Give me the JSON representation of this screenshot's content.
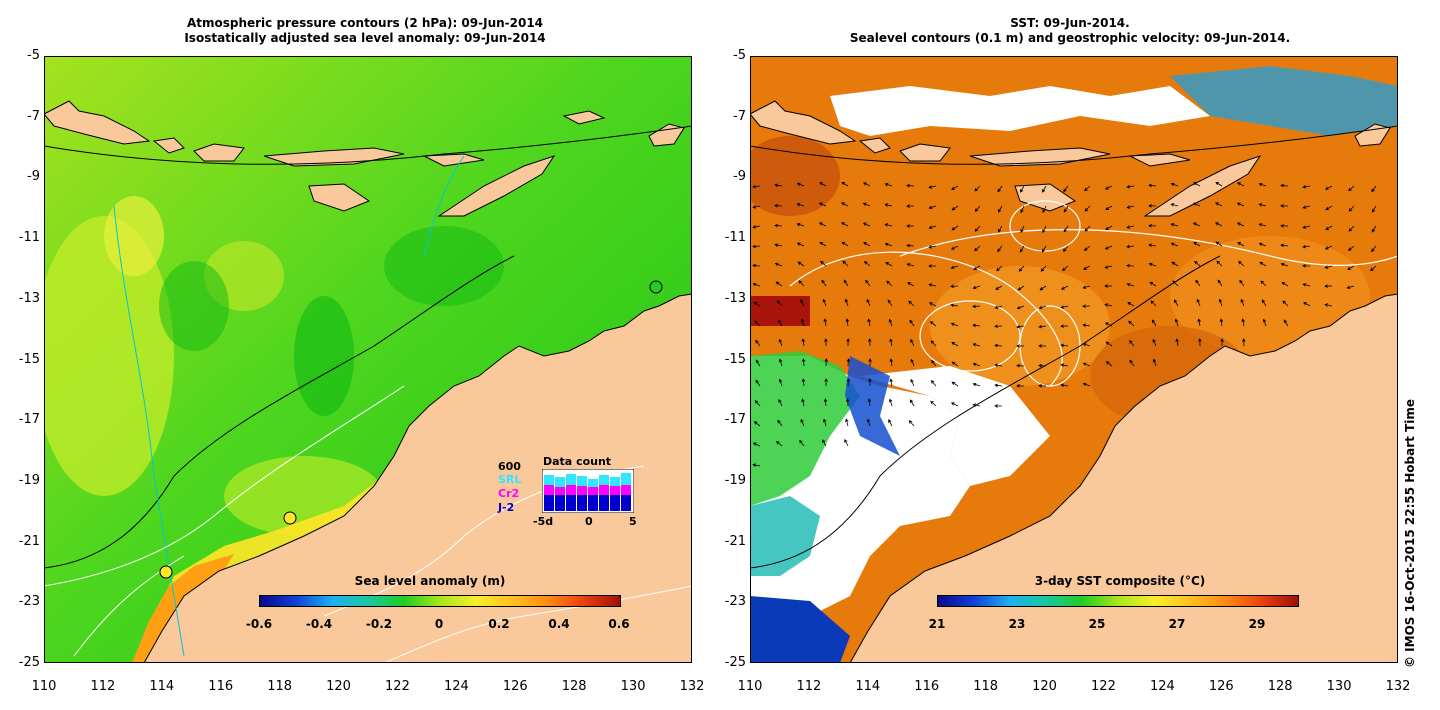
{
  "left_panel": {
    "title_line1": "Atmospheric pressure contours (2 hPa): 09-Jun-2014",
    "title_line2": "Isostatically adjusted sea level anomaly: 09-Jun-2014",
    "colorbar": {
      "title": "Sea level anomaly (m)",
      "ticks": [
        "-0.6",
        "-0.4",
        "-0.2",
        "0",
        "0.2",
        "0.4",
        "0.6"
      ],
      "min": -0.6,
      "max": 0.6
    },
    "inset": {
      "title": "Data count",
      "max_label": "600",
      "sources": [
        {
          "label": "SRL",
          "color": "#33e6ff"
        },
        {
          "label": "Cr2",
          "color": "#ff00ff"
        },
        {
          "label": "J-2",
          "color": "#0000cc"
        }
      ],
      "xticks": [
        "-5d",
        "0",
        "5"
      ]
    }
  },
  "right_panel": {
    "title_line1": "SST: 09-Jun-2014.",
    "title_line2": "Sealevel contours (0.1 m) and geostrophic velocity: 09-Jun-2014.",
    "colorbar": {
      "title": "3-day SST composite (°C)",
      "ticks": [
        "21",
        "23",
        "25",
        "27",
        "29"
      ],
      "min": 21,
      "max": 30
    }
  },
  "axes": {
    "lat_ticks": [
      "-5",
      "-7",
      "-9",
      "-11",
      "-13",
      "-15",
      "-17",
      "-19",
      "-21",
      "-23",
      "-25"
    ],
    "lon_ticks": [
      "110",
      "112",
      "114",
      "116",
      "118",
      "120",
      "122",
      "124",
      "126",
      "128",
      "130",
      "132"
    ]
  },
  "copyright": "© IMOS 16-Oct-2015 22:55 Hobart Time",
  "colors": {
    "land": "#f9c89b",
    "sla_ocean": "#22cc22",
    "sst_ocean": "#e67a0a",
    "cloud": "#ffffff"
  }
}
